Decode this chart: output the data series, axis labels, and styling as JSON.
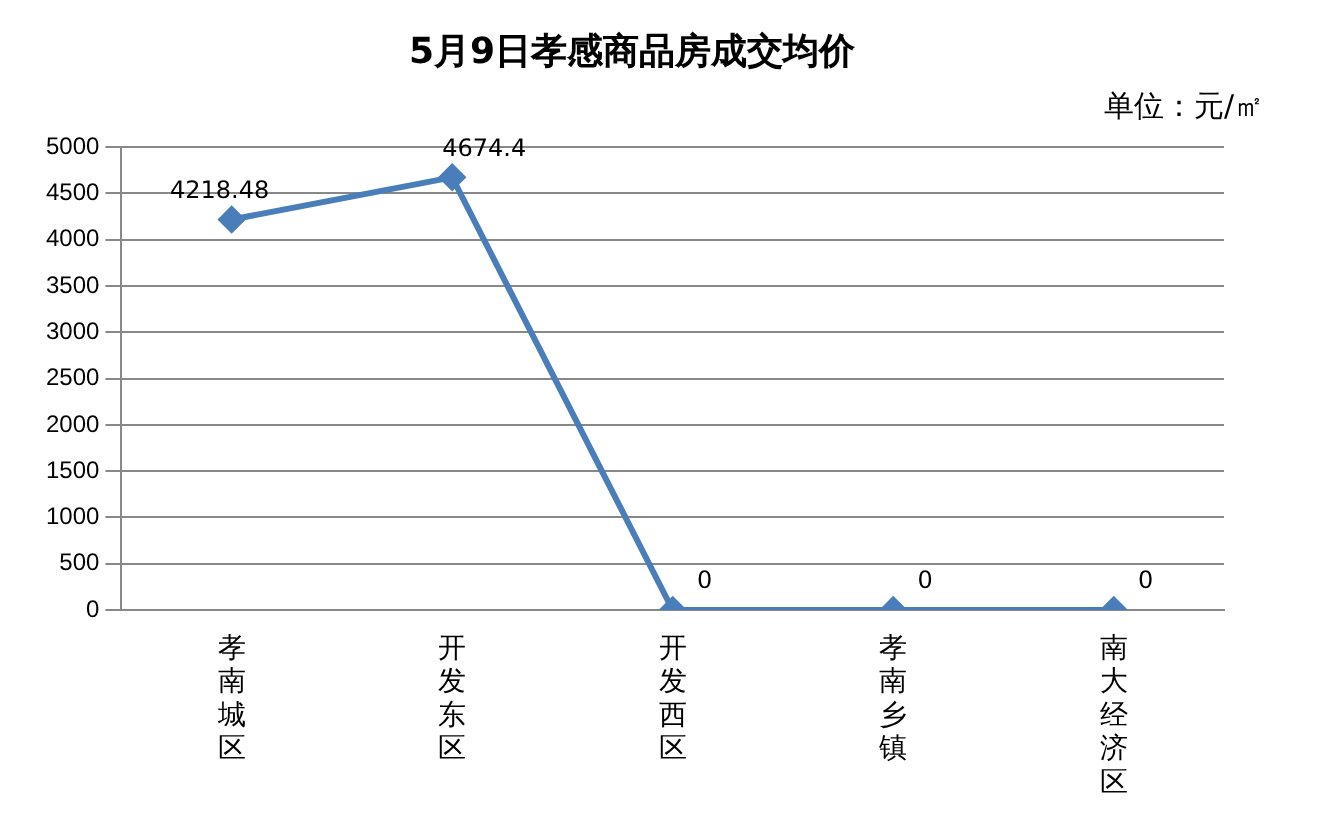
{
  "chart_data": {
    "type": "line",
    "title": "5月9日孝感商品房成交均价",
    "annotations": [
      "单位：元/㎡"
    ],
    "categories": [
      "孝南城区",
      "开发东区",
      "开发西区",
      "孝南乡镇",
      "南大经济区"
    ],
    "values": [
      4218.48,
      4674.4,
      0,
      0,
      0
    ],
    "color": "#4a7ebb",
    "ylim": [
      0,
      5000
    ],
    "yticks": [
      0,
      500,
      1000,
      1500,
      2000,
      2500,
      3000,
      3500,
      4000,
      4500,
      5000
    ],
    "grid": "y",
    "legend": false,
    "marker": "diamond",
    "line_style": "solid",
    "data_labels": true
  }
}
